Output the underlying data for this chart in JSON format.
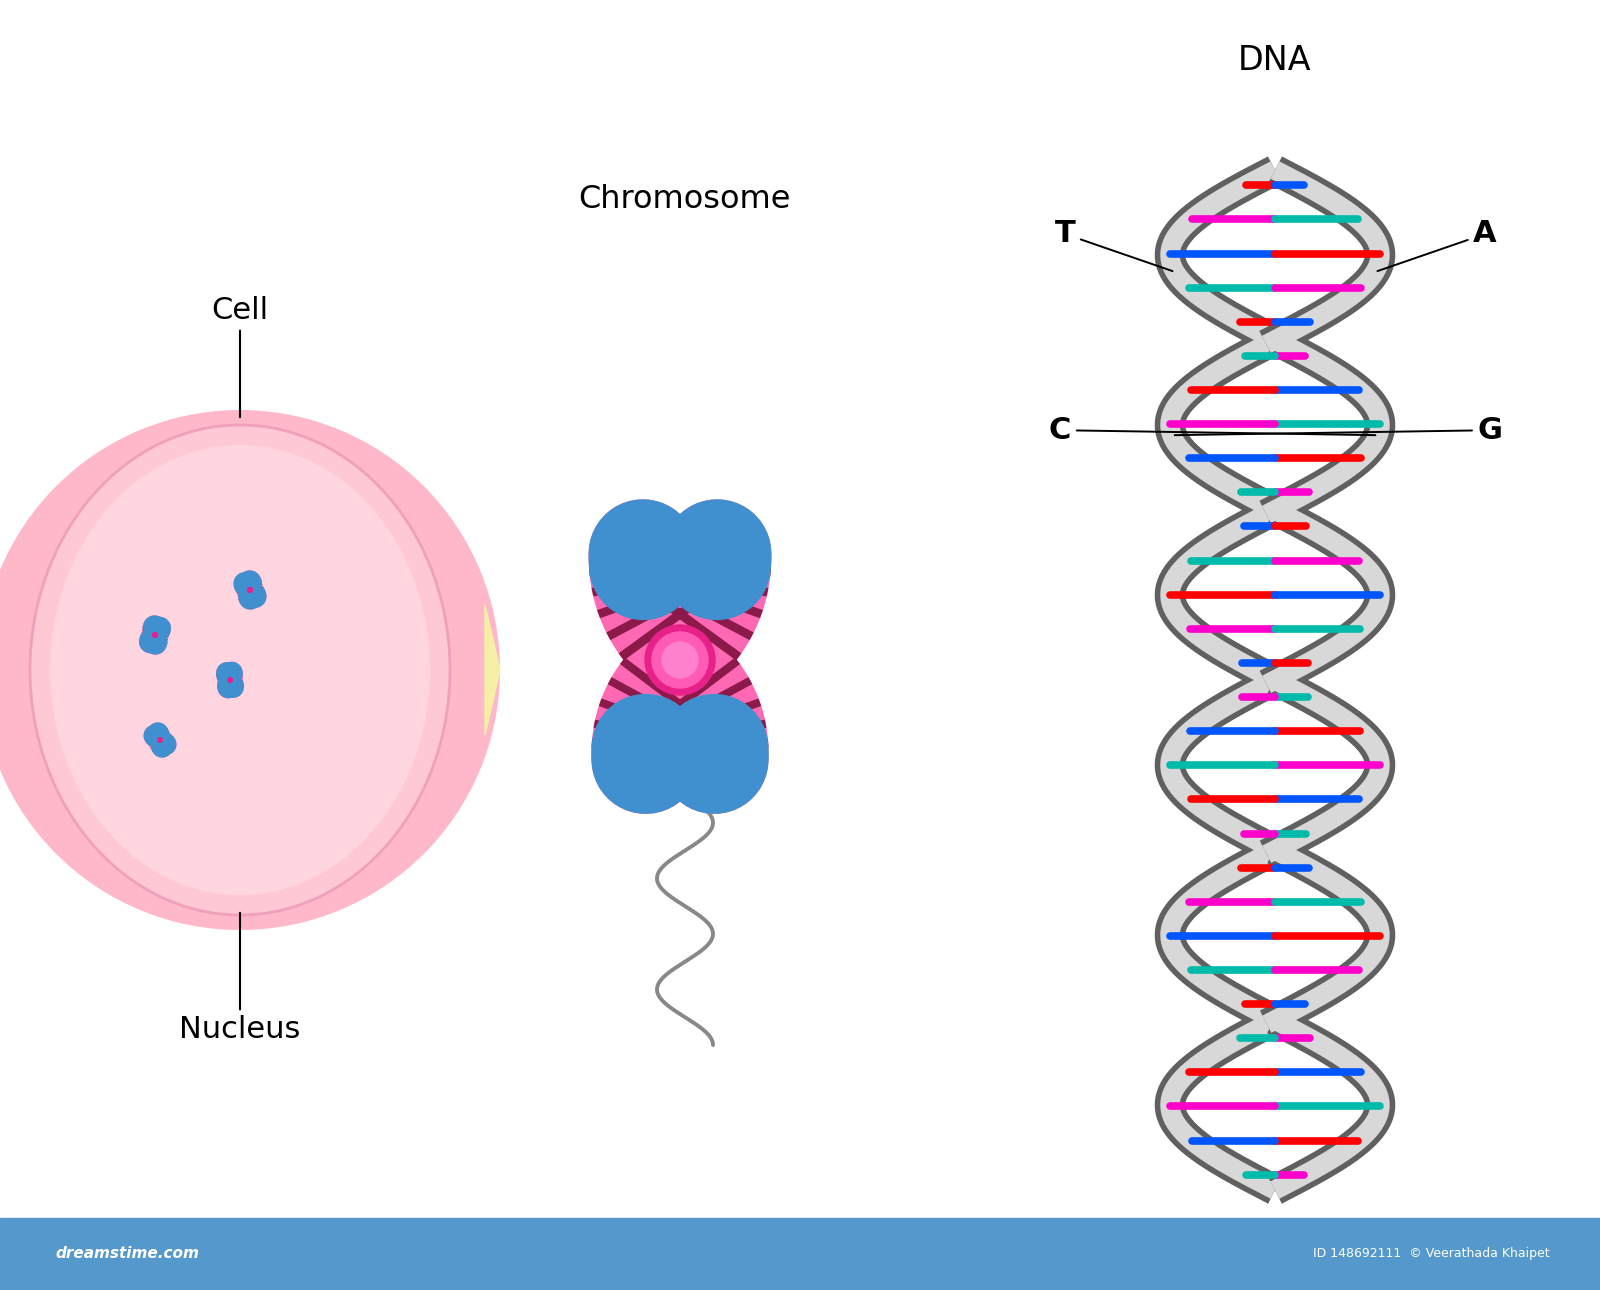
{
  "bg_color": "#ffffff",
  "cell_outer_color": "#ffb8c8",
  "cell_inner_color": "#f8a0b8",
  "nucleus_color": "#ffd0dc",
  "chromosome_pink": "#ff69b4",
  "chromosome_stripe": "#8B1A4A",
  "chromosome_blue": "#4090d0",
  "centromere_color": "#e8208a",
  "dna_backbone_outer": "#808080",
  "dna_backbone_inner": "#e0e0e0",
  "dna_red": "#ff0000",
  "dna_blue": "#0055ff",
  "dna_magenta": "#ff00cc",
  "dna_teal": "#00bbaa",
  "labels": {
    "cell": "Cell",
    "nucleus": "Nucleus",
    "chromosome_title": "Chromosome",
    "dna_title": "DNA",
    "T": "T",
    "A": "A",
    "C": "C",
    "G": "G"
  },
  "font_size_title": 20,
  "watermark_color": "#5599cc",
  "watermark_text": "dreamstime.com",
  "watermark_id": "ID 148692111  © Veerathada Khaipet"
}
